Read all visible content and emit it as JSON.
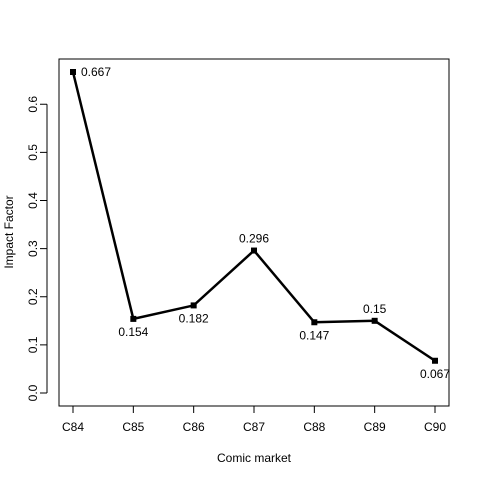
{
  "chart_data": {
    "type": "line",
    "title": "",
    "xlabel": "Comic market",
    "ylabel": "Impact Factor",
    "categories": [
      "C84",
      "C85",
      "C86",
      "C87",
      "C88",
      "C89",
      "C90"
    ],
    "values": [
      0.667,
      0.154,
      0.182,
      0.296,
      0.147,
      0.15,
      0.067
    ],
    "data_labels": [
      "0.667",
      "0.154",
      "0.182",
      "0.296",
      "0.147",
      "0.15",
      "0.067"
    ],
    "yticks": [
      0.0,
      0.1,
      0.2,
      0.3,
      0.4,
      0.5,
      0.6
    ],
    "ytick_labels": [
      "0.0",
      "0.1",
      "0.2",
      "0.3",
      "0.4",
      "0.5",
      "0.6"
    ],
    "ylim": [
      0.0,
      0.667
    ],
    "grid": false,
    "marker": "square",
    "line_color": "#000000"
  }
}
